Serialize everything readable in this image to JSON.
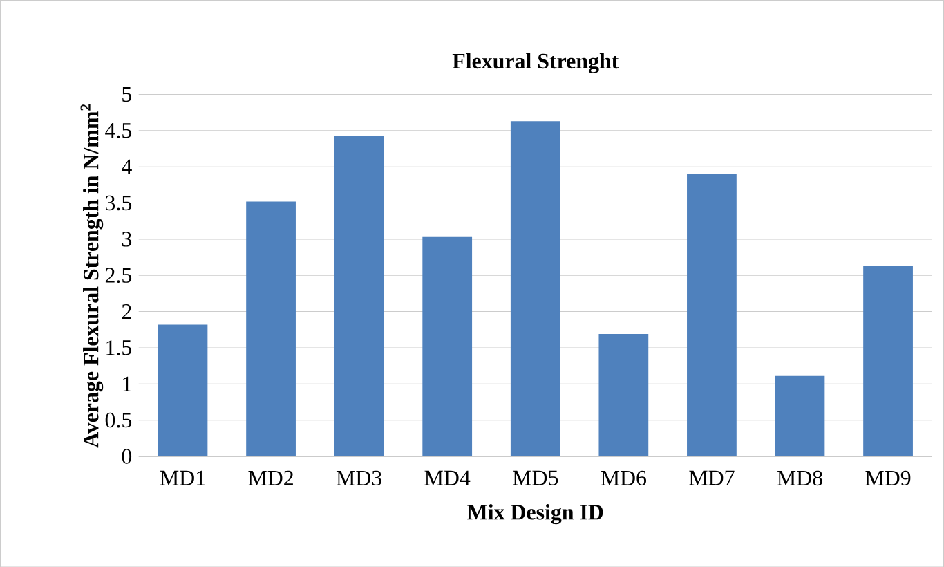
{
  "chart_data": {
    "type": "bar",
    "title": "Flexural Strenght",
    "xlabel": "Mix Design ID",
    "ylabel": "Average Flexural Strength in N/mm$^{2}$",
    "categories": [
      "MD1",
      "MD2",
      "MD3",
      "MD4",
      "MD5",
      "MD6",
      "MD7",
      "MD8",
      "MD9"
    ],
    "values": [
      1.82,
      3.52,
      4.43,
      3.03,
      4.63,
      1.69,
      3.9,
      1.11,
      2.63
    ],
    "color": "#4f81bd",
    "ylim": [
      0,
      5
    ],
    "yticks": [
      0,
      0.5,
      1,
      1.5,
      2,
      2.5,
      3,
      3.5,
      4,
      4.5,
      5
    ],
    "grid": "y"
  }
}
